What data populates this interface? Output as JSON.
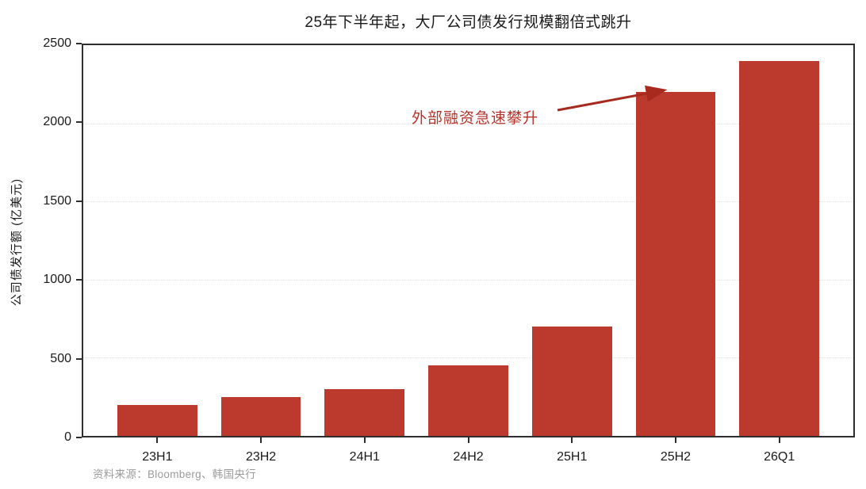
{
  "title": "25年下半年起，大厂公司债发行规模翻倍式跳升",
  "source": "资料来源：Bloomberg、韩国央行",
  "annotation": {
    "text": "外部融资急速攀升",
    "color": "#b5342a",
    "arrow_color": "#a82a1f",
    "points_to": "25H2"
  },
  "colors": {
    "bar": "#bc3a2d",
    "axis": "#2e2e2e",
    "grid": "#e3e3e3",
    "text": "#1a1a1a",
    "source_text": "#9b9b9b"
  },
  "chart_data": {
    "type": "bar",
    "title": "25年下半年起，大厂公司债发行规模翻倍式跳升",
    "categories": [
      "23H1",
      "23H2",
      "24H1",
      "24H2",
      "25H1",
      "25H2",
      "26Q1"
    ],
    "values": [
      200,
      250,
      300,
      450,
      700,
      2200,
      2400
    ],
    "xlabel": "",
    "ylabel": "公司债发行额 (亿美元)",
    "ylim": [
      0,
      2500
    ],
    "yticks": [
      0,
      500,
      1000,
      1500,
      2000,
      2500
    ],
    "grid": "horizontal dotted",
    "legend": "none",
    "bar_color": "#bc3a2d"
  }
}
